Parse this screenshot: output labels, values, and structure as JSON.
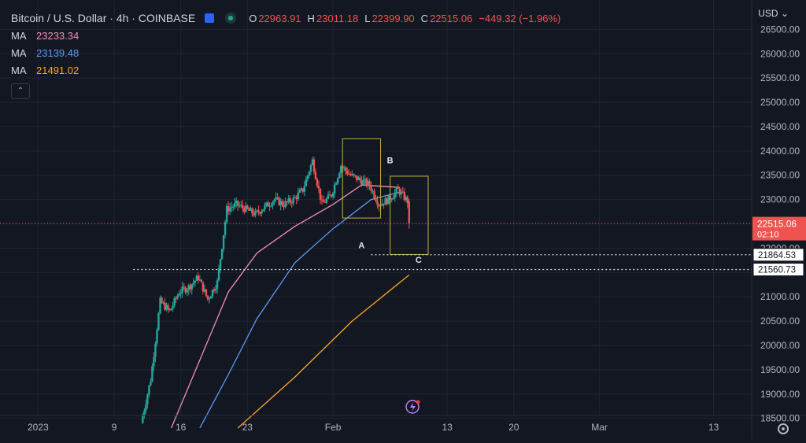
{
  "header": {
    "symbol_title": "Bitcoin / U.S. Dollar · 4h · COINBASE",
    "ohlc": [
      {
        "key": "O",
        "value": "22963.91"
      },
      {
        "key": "H",
        "value": "23011.18"
      },
      {
        "key": "L",
        "value": "22399.90"
      },
      {
        "key": "C",
        "value": "22515.06"
      }
    ],
    "change": "−449.32 (−1.96%)"
  },
  "indicators": [
    {
      "label": "MA",
      "value": "23233.34",
      "color": "#f48fb1"
    },
    {
      "label": "MA",
      "value": "23139.48",
      "color": "#5b9cf6"
    },
    {
      "label": "MA",
      "value": "21491.02",
      "color": "#ffa726"
    }
  ],
  "currency": "USD",
  "colors": {
    "up": "#26a69a",
    "down": "#ef5350",
    "background": "#131722",
    "grid": "#1f2430",
    "axis_text": "#b2b5be",
    "box": "#c8b13a",
    "annotation_text": "#e0e3eb",
    "price_tag_bg": "#ef5350",
    "price_tag_text": "#ffffff"
  },
  "chart_data": {
    "type": "candlestick",
    "y_axis": {
      "min": 18300,
      "max": 26700,
      "ticks": [
        18500,
        19000,
        19500,
        20000,
        20500,
        21000,
        21500,
        22000,
        22500,
        23000,
        23500,
        24000,
        24500,
        25000,
        25500,
        26000,
        26500
      ],
      "tick_labels": [
        "18500.00",
        "19000.00",
        "19500.00",
        "20000.00",
        "20500.00",
        "21000.00",
        "21500.00",
        "22000.00",
        "22500.00",
        "23000.00",
        "23500.00",
        "24000.00",
        "24500.00",
        "25000.00",
        "25500.00",
        "26000.00",
        "26500.00"
      ]
    },
    "x_axis": {
      "start_date": "2022-12-28",
      "end_date": "2023-03-17",
      "ticks": [
        {
          "date": "2023-01-01",
          "label": "2023"
        },
        {
          "date": "2023-01-09",
          "label": "9"
        },
        {
          "date": "2023-01-16",
          "label": "16"
        },
        {
          "date": "2023-01-23",
          "label": "23"
        },
        {
          "date": "2023-02-01",
          "label": "Feb"
        },
        {
          "date": "2023-02-13",
          "label": "13"
        },
        {
          "date": "2023-02-20",
          "label": "20"
        },
        {
          "date": "2023-03-01",
          "label": "Mar"
        },
        {
          "date": "2023-03-13",
          "label": "13"
        }
      ]
    },
    "last_price": {
      "value": 22515.06,
      "label": "22515.06",
      "countdown": "02:10"
    },
    "price_lines": [
      {
        "value": 21864.53,
        "label": "21864.53",
        "from_date": "2023-02-05"
      },
      {
        "value": 21560.73,
        "label": "21560.73",
        "from_date": "2023-01-11"
      }
    ],
    "annotations": [
      {
        "text": "A",
        "date": "2023-02-04",
        "price": 22000
      },
      {
        "text": "B",
        "date": "2023-02-07",
        "price": 23750
      },
      {
        "text": "C",
        "date": "2023-02-10",
        "price": 21700
      }
    ],
    "boxes": [
      {
        "from_date": "2023-02-02",
        "to_date": "2023-02-06",
        "high": 24250,
        "low": 22620
      },
      {
        "from_date": "2023-02-07",
        "to_date": "2023-02-11",
        "high": 23480,
        "low": 21870
      }
    ],
    "ma_lines": [
      {
        "label": "MA",
        "color": "#f48fb1",
        "points": [
          {
            "date": "2023-01-15",
            "price": 18300
          },
          {
            "date": "2023-01-18",
            "price": 19700
          },
          {
            "date": "2023-01-21",
            "price": 21100
          },
          {
            "date": "2023-01-24",
            "price": 21900
          },
          {
            "date": "2023-01-28",
            "price": 22450
          },
          {
            "date": "2023-02-01",
            "price": 22900
          },
          {
            "date": "2023-02-04",
            "price": 23300
          },
          {
            "date": "2023-02-08",
            "price": 23250
          }
        ]
      },
      {
        "label": "MA",
        "color": "#5b9cf6",
        "points": [
          {
            "date": "2023-01-18",
            "price": 18300
          },
          {
            "date": "2023-01-21",
            "price": 19400
          },
          {
            "date": "2023-01-24",
            "price": 20550
          },
          {
            "date": "2023-01-28",
            "price": 21700
          },
          {
            "date": "2023-02-01",
            "price": 22400
          },
          {
            "date": "2023-02-05",
            "price": 23000
          },
          {
            "date": "2023-02-08",
            "price": 23150
          }
        ]
      },
      {
        "label": "MA",
        "color": "#ffa726",
        "points": [
          {
            "date": "2023-01-22",
            "price": 18300
          },
          {
            "date": "2023-01-28",
            "price": 19350
          },
          {
            "date": "2023-02-03",
            "price": 20500
          },
          {
            "date": "2023-02-09",
            "price": 21450
          }
        ]
      }
    ],
    "price_path": [
      {
        "date": "2023-01-12",
        "price": 18400
      },
      {
        "date": "2023-01-13",
        "price": 19300
      },
      {
        "date": "2023-01-14",
        "price": 20900
      },
      {
        "date": "2023-01-15",
        "price": 20700
      },
      {
        "date": "2023-01-16",
        "price": 21100
      },
      {
        "date": "2023-01-17",
        "price": 21200
      },
      {
        "date": "2023-01-18",
        "price": 21400
      },
      {
        "date": "2023-01-19",
        "price": 20950
      },
      {
        "date": "2023-01-20",
        "price": 21300
      },
      {
        "date": "2023-01-21",
        "price": 22800
      },
      {
        "date": "2023-01-22",
        "price": 22900
      },
      {
        "date": "2023-01-24",
        "price": 22700
      },
      {
        "date": "2023-01-26",
        "price": 23000
      },
      {
        "date": "2023-01-27",
        "price": 22900
      },
      {
        "date": "2023-01-28",
        "price": 23000
      },
      {
        "date": "2023-01-29",
        "price": 23200
      },
      {
        "date": "2023-01-30",
        "price": 23800
      },
      {
        "date": "2023-01-31",
        "price": 22900
      },
      {
        "date": "2023-02-01",
        "price": 23100
      },
      {
        "date": "2023-02-02",
        "price": 23700
      },
      {
        "date": "2023-02-03",
        "price": 23500
      },
      {
        "date": "2023-02-04",
        "price": 23400
      },
      {
        "date": "2023-02-05",
        "price": 23300
      },
      {
        "date": "2023-02-06",
        "price": 22900
      },
      {
        "date": "2023-02-07",
        "price": 23000
      },
      {
        "date": "2023-02-08",
        "price": 23200
      },
      {
        "date": "2023-02-09",
        "price": 22963.91
      }
    ],
    "last_candle": {
      "open": 22963.91,
      "high": 23011.18,
      "low": 22399.9,
      "close": 22515.06
    }
  }
}
